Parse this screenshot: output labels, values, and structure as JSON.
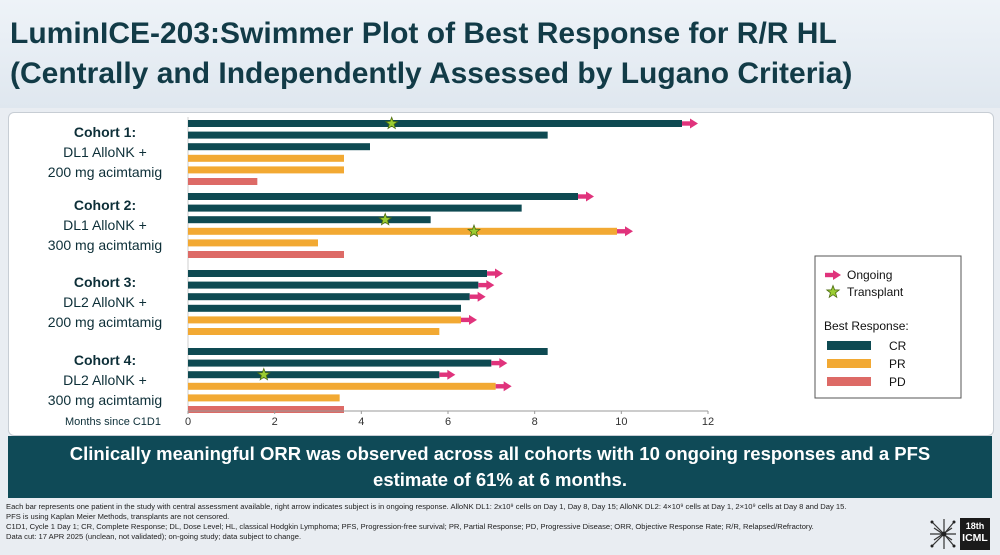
{
  "title": {
    "line1": "LuminICE-203:Swimmer Plot of Best Response for R/R HL",
    "line2": "(Centrally and Independently Assessed by Lugano Criteria)"
  },
  "colors": {
    "CR": "#0e4a52",
    "PR": "#f2a933",
    "PD": "#dd6a66",
    "ongoing": "#e0337c",
    "transplant": "#9acd32",
    "banner": "#0f4a57"
  },
  "chart_data": {
    "type": "bar",
    "orientation": "horizontal",
    "xlabel": "Months since C1D1",
    "xlim": [
      0,
      12
    ],
    "xticks": [
      0,
      2,
      4,
      6,
      8,
      10,
      12
    ],
    "groups": [
      {
        "line1": "Cohort 1:",
        "line2": "DL1 AlloNK +",
        "line3": "200 mg acimtamig"
      },
      {
        "line1": "Cohort 2:",
        "line2": "DL1 AlloNK +",
        "line3": "300 mg acimtamig"
      },
      {
        "line1": "Cohort 3:",
        "line2": "DL2 AlloNK +",
        "line3": "200 mg acimtamig"
      },
      {
        "line1": "Cohort 4:",
        "line2": "DL2 AlloNK +",
        "line3": "300 mg acimtamig"
      }
    ],
    "subjects": [
      {
        "group": 0,
        "response": "CR",
        "duration": 11.4,
        "ongoing": true,
        "transplant": 4.7
      },
      {
        "group": 0,
        "response": "CR",
        "duration": 8.3,
        "ongoing": false,
        "transplant": null
      },
      {
        "group": 0,
        "response": "CR",
        "duration": 4.2,
        "ongoing": false,
        "transplant": null
      },
      {
        "group": 0,
        "response": "PR",
        "duration": 3.6,
        "ongoing": false,
        "transplant": null
      },
      {
        "group": 0,
        "response": "PR",
        "duration": 3.6,
        "ongoing": false,
        "transplant": null
      },
      {
        "group": 0,
        "response": "PD",
        "duration": 1.6,
        "ongoing": false,
        "transplant": null
      },
      {
        "group": 1,
        "response": "CR",
        "duration": 9.0,
        "ongoing": true,
        "transplant": null
      },
      {
        "group": 1,
        "response": "CR",
        "duration": 7.7,
        "ongoing": false,
        "transplant": null
      },
      {
        "group": 1,
        "response": "CR",
        "duration": 5.6,
        "ongoing": false,
        "transplant": 4.55
      },
      {
        "group": 1,
        "response": "PR",
        "duration": 9.9,
        "ongoing": true,
        "transplant": 6.6
      },
      {
        "group": 1,
        "response": "PR",
        "duration": 3.0,
        "ongoing": false,
        "transplant": null
      },
      {
        "group": 1,
        "response": "PD",
        "duration": 3.6,
        "ongoing": false,
        "transplant": null
      },
      {
        "group": 2,
        "response": "CR",
        "duration": 6.9,
        "ongoing": true,
        "transplant": null
      },
      {
        "group": 2,
        "response": "CR",
        "duration": 6.7,
        "ongoing": true,
        "transplant": null
      },
      {
        "group": 2,
        "response": "CR",
        "duration": 6.5,
        "ongoing": true,
        "transplant": null
      },
      {
        "group": 2,
        "response": "CR",
        "duration": 6.3,
        "ongoing": false,
        "transplant": null
      },
      {
        "group": 2,
        "response": "PR",
        "duration": 6.3,
        "ongoing": true,
        "transplant": null
      },
      {
        "group": 2,
        "response": "PR",
        "duration": 5.8,
        "ongoing": false,
        "transplant": null
      },
      {
        "group": 3,
        "response": "CR",
        "duration": 8.3,
        "ongoing": false,
        "transplant": null
      },
      {
        "group": 3,
        "response": "CR",
        "duration": 7.0,
        "ongoing": true,
        "transplant": null
      },
      {
        "group": 3,
        "response": "CR",
        "duration": 5.8,
        "ongoing": true,
        "transplant": 1.75
      },
      {
        "group": 3,
        "response": "PR",
        "duration": 7.1,
        "ongoing": true,
        "transplant": null
      },
      {
        "group": 3,
        "response": "PR",
        "duration": 3.5,
        "ongoing": false,
        "transplant": null
      },
      {
        "group": 3,
        "response": "PD",
        "duration": 3.6,
        "ongoing": false,
        "transplant": null
      }
    ],
    "legend": {
      "ongoing": "Ongoing",
      "transplant": "Transplant",
      "best_response_title": "Best Response:",
      "entries": [
        "CR",
        "PR",
        "PD"
      ],
      "placement": "right"
    }
  },
  "banner": {
    "text": "Clinically meaningful ORR was observed across all cohorts with 10 ongoing responses and a PFS estimate of 61% at 6 months."
  },
  "footnotes": {
    "line1": "Each bar represents one patient in the study with central assessment available, right arrow indicates subject is in ongoing response. AlloNK DL1: 2x10⁹ cells on Day 1, Day 8, Day 15; AlloNK DL2: 4×10⁹ cells at Day 1, 2×10⁹ cells at Day 8 and Day 15.",
    "line2": "PFS is using Kaplan Meier Methods, transplants are not censored.",
    "line3": "C1D1, Cycle 1 Day 1; CR, Complete Response; DL, Dose Level; HL, classical Hodgkin Lymphoma; PFS, Progression-free survival; PR, Partial Response; PD, Progressive Disease; ORR, Objective Response Rate; R/R, Relapsed/Refractory.",
    "line4": "Data cut: 17 APR 2025 (unclean, not validated); on-going study; data subject to change."
  },
  "logo": {
    "top": "18th",
    "bottom": "ICML"
  }
}
